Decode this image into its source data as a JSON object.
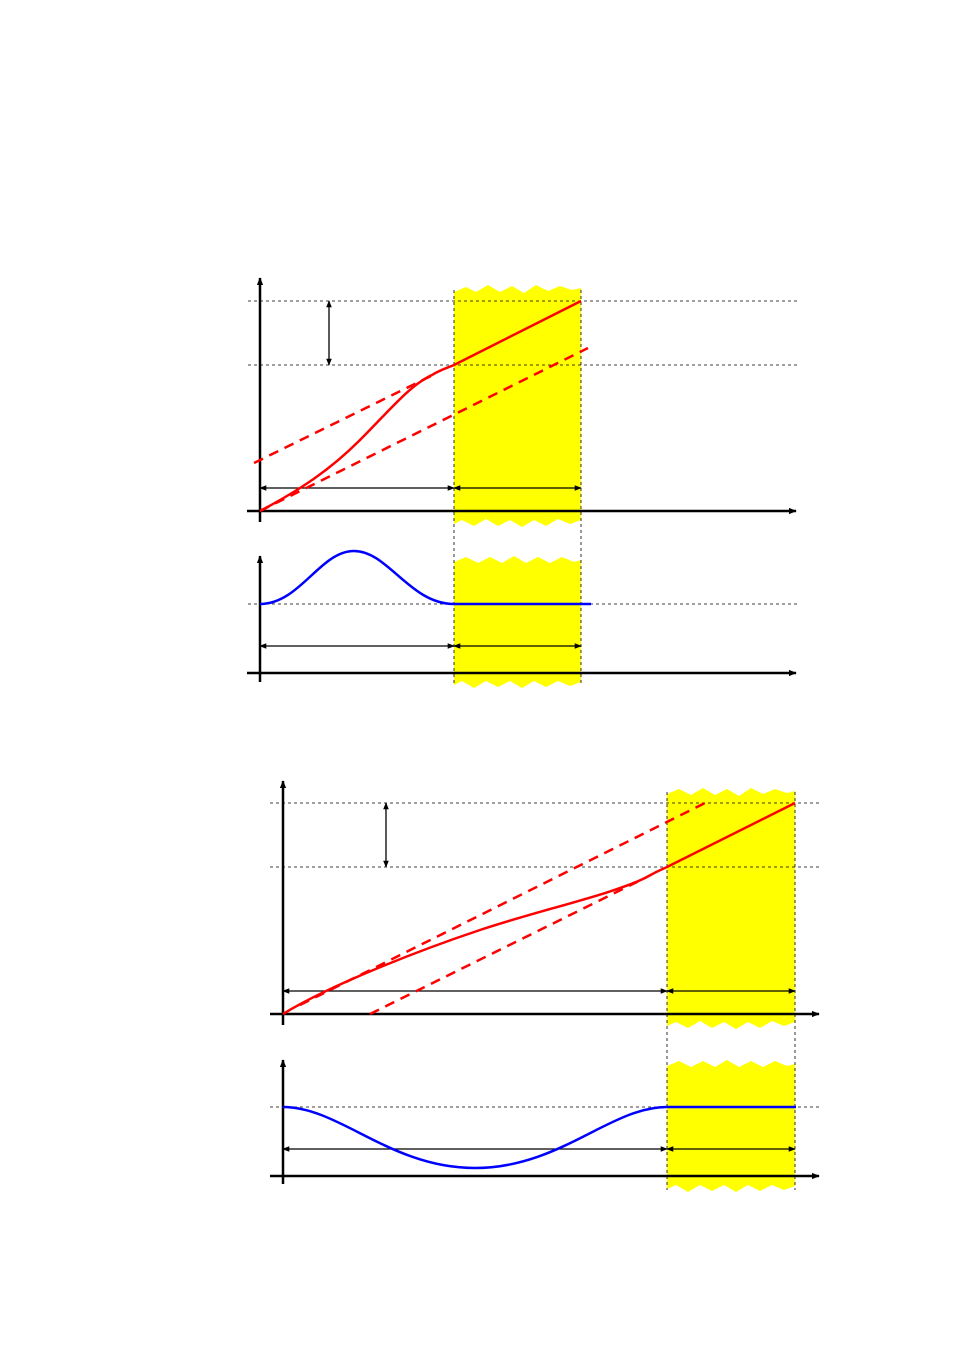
{
  "colors": {
    "background": "#ffffff",
    "position_curve": "#ff0000",
    "velocity_curve": "#0000ff",
    "highlight": "#ffff00",
    "axis": "#000000",
    "guide": "#000000"
  },
  "figures": [
    {
      "id": "top",
      "velocity_profile": "bump-up"
    },
    {
      "id": "bottom",
      "velocity_profile": "dip-down"
    }
  ]
}
